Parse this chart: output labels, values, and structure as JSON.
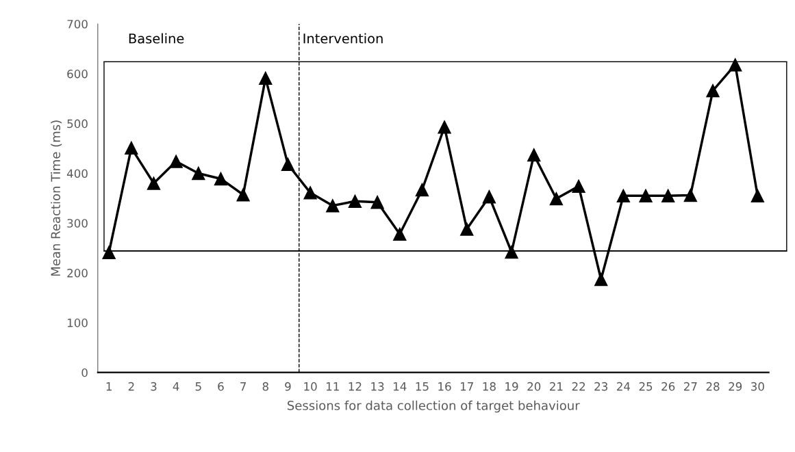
{
  "chart_data": {
    "type": "line",
    "xlabel": "Sessions for data collection of target behaviour",
    "ylabel": "Mean Reaction Time (ms)",
    "x": [
      1,
      2,
      3,
      4,
      5,
      6,
      7,
      8,
      9,
      10,
      11,
      12,
      13,
      14,
      15,
      16,
      17,
      18,
      19,
      20,
      21,
      22,
      23,
      24,
      25,
      26,
      27,
      28,
      29,
      30
    ],
    "series": [
      {
        "color": "#000000",
        "values": [
          241,
          451,
          380,
          424,
          400,
          389,
          357,
          591,
          418,
          361,
          335,
          344,
          342,
          278,
          367,
          493,
          288,
          353,
          242,
          437,
          349,
          374,
          187,
          355,
          355,
          355,
          356,
          566,
          618,
          355
        ]
      }
    ],
    "xlim": [
      0.5,
      30.5
    ],
    "xticks": [
      1,
      2,
      3,
      4,
      5,
      6,
      7,
      8,
      9,
      10,
      11,
      12,
      13,
      14,
      15,
      16,
      17,
      18,
      19,
      20,
      21,
      22,
      23,
      24,
      25,
      26,
      27,
      28,
      29,
      30
    ],
    "ylim": [
      0,
      700
    ],
    "yticks": [
      0,
      100,
      200,
      300,
      400,
      500,
      600,
      700
    ],
    "marker": "triangle",
    "line_style": "solid",
    "grid": false,
    "legend": false,
    "ref_lines": [
      {
        "axis": "x",
        "value": 9.5,
        "label": null,
        "color": "#000000",
        "line_style": "dashed"
      },
      {
        "axis": "y",
        "value": 244,
        "label": null,
        "color": "#000000",
        "line_style": "solid"
      },
      {
        "axis": "y",
        "value": 624,
        "label": null,
        "color": "#000000",
        "line_style": "solid"
      }
    ],
    "annotations": [
      "Baseline",
      "Intervention"
    ]
  }
}
